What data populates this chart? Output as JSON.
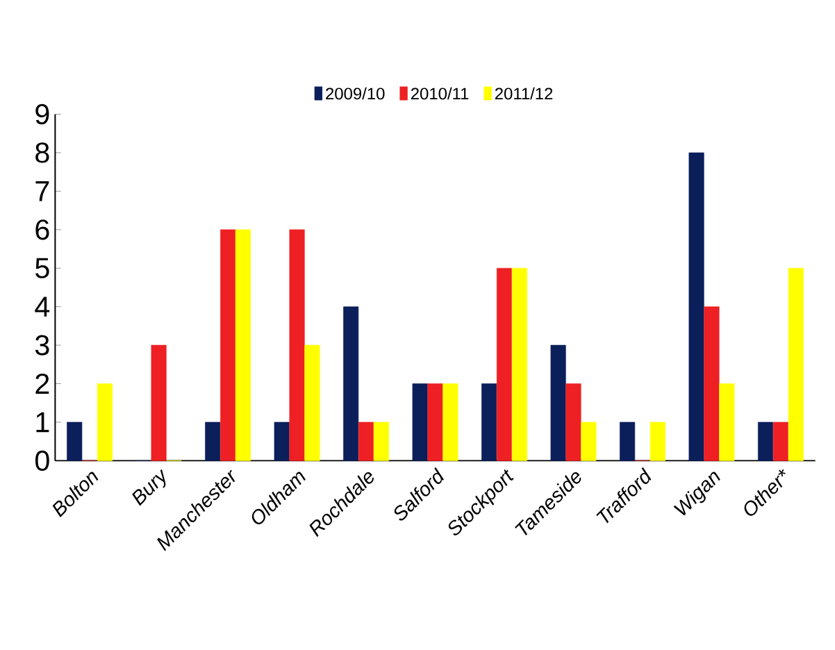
{
  "chart_data": {
    "type": "bar",
    "categories": [
      "Bolton",
      "Bury",
      "Manchester",
      "Oldham",
      "Rochdale",
      "Salford",
      "Stockport",
      "Tameside",
      "Trafford",
      "Wigan",
      "Other*"
    ],
    "series": [
      {
        "name": "2009/10",
        "color": "#0b1f5a",
        "values": [
          1,
          0,
          1,
          1,
          4,
          2,
          2,
          3,
          1,
          8,
          1
        ]
      },
      {
        "name": "2010/11",
        "color": "#ee2024",
        "values": [
          0,
          3,
          6,
          6,
          1,
          2,
          5,
          2,
          0,
          4,
          1
        ]
      },
      {
        "name": "2011/12",
        "color": "#ffff00",
        "values": [
          2,
          0,
          6,
          3,
          1,
          2,
          5,
          1,
          1,
          2,
          5
        ]
      }
    ],
    "ylim": [
      0,
      9
    ],
    "yticks": [
      0,
      1,
      2,
      3,
      4,
      5,
      6,
      7,
      8,
      9
    ],
    "grid": false,
    "legend": "top"
  }
}
